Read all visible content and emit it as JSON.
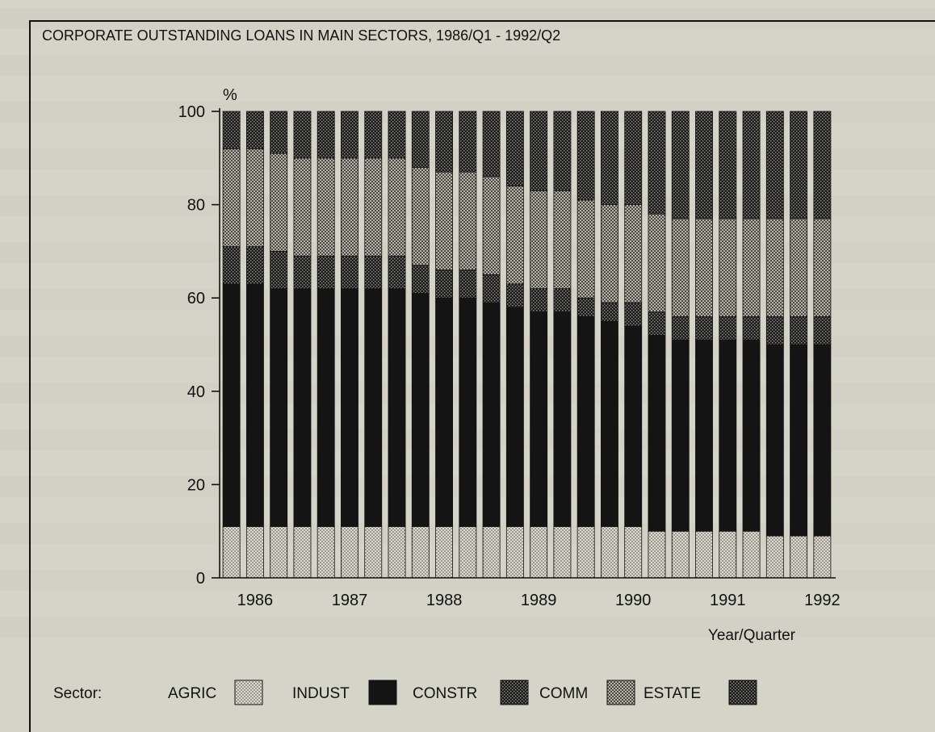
{
  "chart_data": {
    "type": "bar",
    "stacked": true,
    "title": "CORPORATE OUTSTANDING LOANS IN MAIN SECTORS, 1986/Q1 - 1992/Q2",
    "ylabel": "%",
    "xlabel": "Year/Quarter",
    "ylim": [
      0,
      100
    ],
    "yticks": [
      0,
      20,
      40,
      60,
      80,
      100
    ],
    "year_labels": [
      "1986",
      "1987",
      "1988",
      "1989",
      "1990",
      "1991",
      "1992"
    ],
    "legend_title": "Sector:",
    "legend_position": "bottom",
    "categories": [
      "1986Q1",
      "1986Q2",
      "1986Q3",
      "1986Q4",
      "1987Q1",
      "1987Q2",
      "1987Q3",
      "1987Q4",
      "1988Q1",
      "1988Q2",
      "1988Q3",
      "1988Q4",
      "1989Q1",
      "1989Q2",
      "1989Q3",
      "1989Q4",
      "1990Q1",
      "1990Q2",
      "1990Q3",
      "1990Q4",
      "1991Q1",
      "1991Q2",
      "1991Q3",
      "1991Q4",
      "1992Q1",
      "1992Q2"
    ],
    "series": [
      {
        "name": "AGRIC",
        "pattern": "light-dots",
        "values": [
          11,
          11,
          11,
          11,
          11,
          11,
          11,
          11,
          11,
          11,
          11,
          11,
          11,
          11,
          11,
          11,
          11,
          11,
          10,
          10,
          10,
          10,
          10,
          9,
          9,
          9
        ]
      },
      {
        "name": "INDUST",
        "pattern": "solid-black",
        "values": [
          52,
          52,
          51,
          51,
          51,
          51,
          51,
          51,
          50,
          49,
          49,
          48,
          47,
          46,
          46,
          45,
          44,
          43,
          42,
          41,
          41,
          41,
          41,
          41,
          41,
          41
        ]
      },
      {
        "name": "CONSTR",
        "pattern": "dark-checker",
        "values": [
          8,
          8,
          8,
          7,
          7,
          7,
          7,
          7,
          6,
          6,
          6,
          6,
          5,
          5,
          5,
          4,
          4,
          5,
          5,
          5,
          5,
          5,
          5,
          6,
          6,
          6
        ]
      },
      {
        "name": "COMM",
        "pattern": "medium-dots",
        "values": [
          21,
          21,
          21,
          21,
          21,
          21,
          21,
          21,
          21,
          21,
          21,
          21,
          21,
          21,
          21,
          21,
          21,
          21,
          21,
          21,
          21,
          21,
          21,
          21,
          21,
          21
        ]
      },
      {
        "name": "ESTATE",
        "pattern": "dark-checker",
        "values": [
          8,
          8,
          9,
          10,
          10,
          10,
          10,
          10,
          12,
          13,
          13,
          14,
          16,
          17,
          17,
          19,
          20,
          20,
          22,
          23,
          23,
          23,
          23,
          23,
          23,
          23
        ]
      }
    ],
    "grid": false
  }
}
